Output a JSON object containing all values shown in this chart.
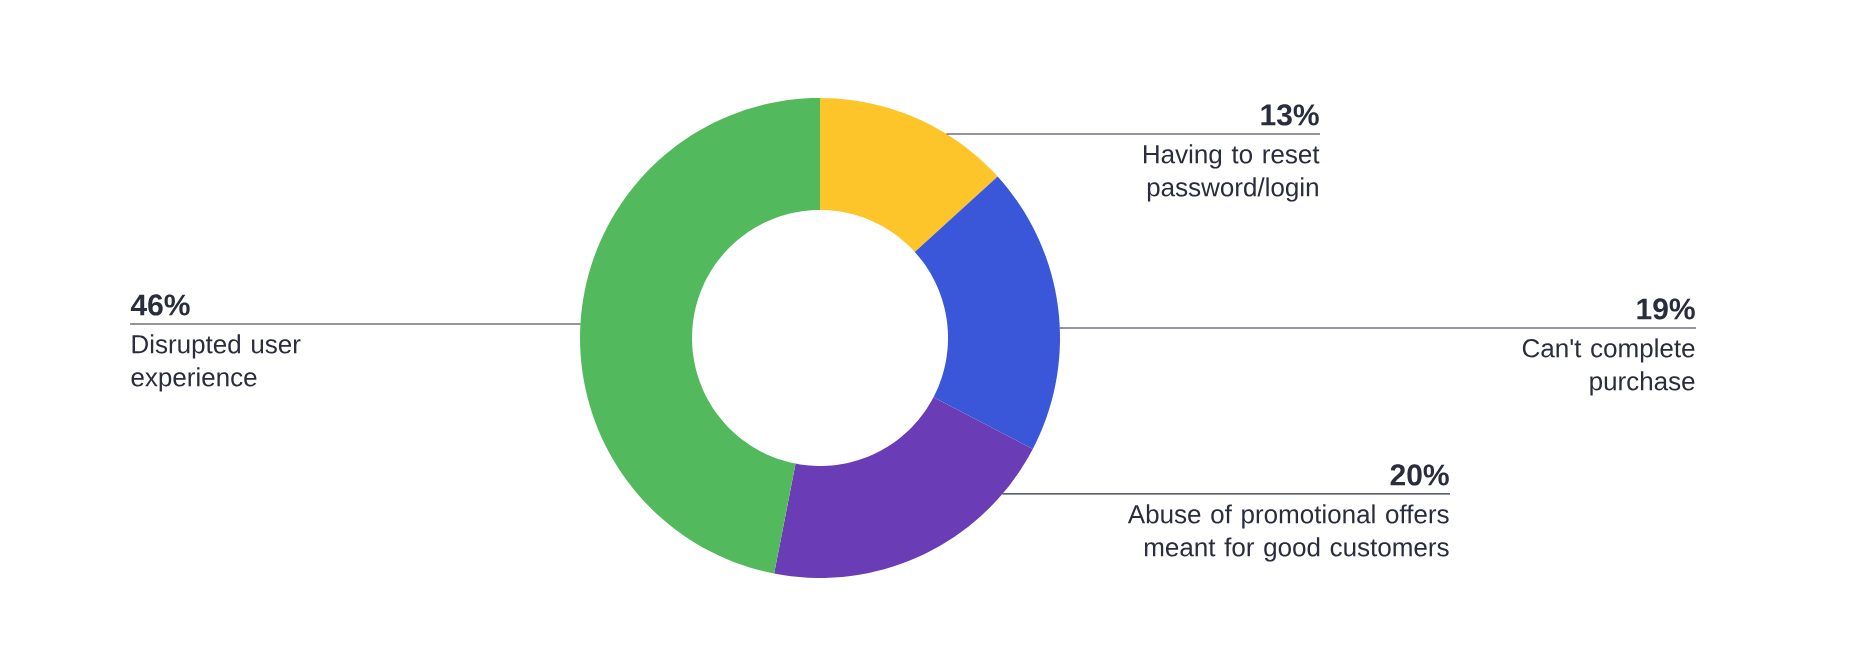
{
  "chart_data": {
    "type": "donut",
    "categories": [
      "Having to reset password/login",
      "Can't complete purchase",
      "Abuse of promotional offers meant for good customers",
      "Disrupted user experience"
    ],
    "values": [
      13,
      19,
      20,
      46
    ],
    "value_labels": [
      "13%",
      "19%",
      "20%",
      "46%"
    ],
    "colors": [
      "#fdc52a",
      "#3a57d9",
      "#6a3db6",
      "#52b95d"
    ]
  }
}
